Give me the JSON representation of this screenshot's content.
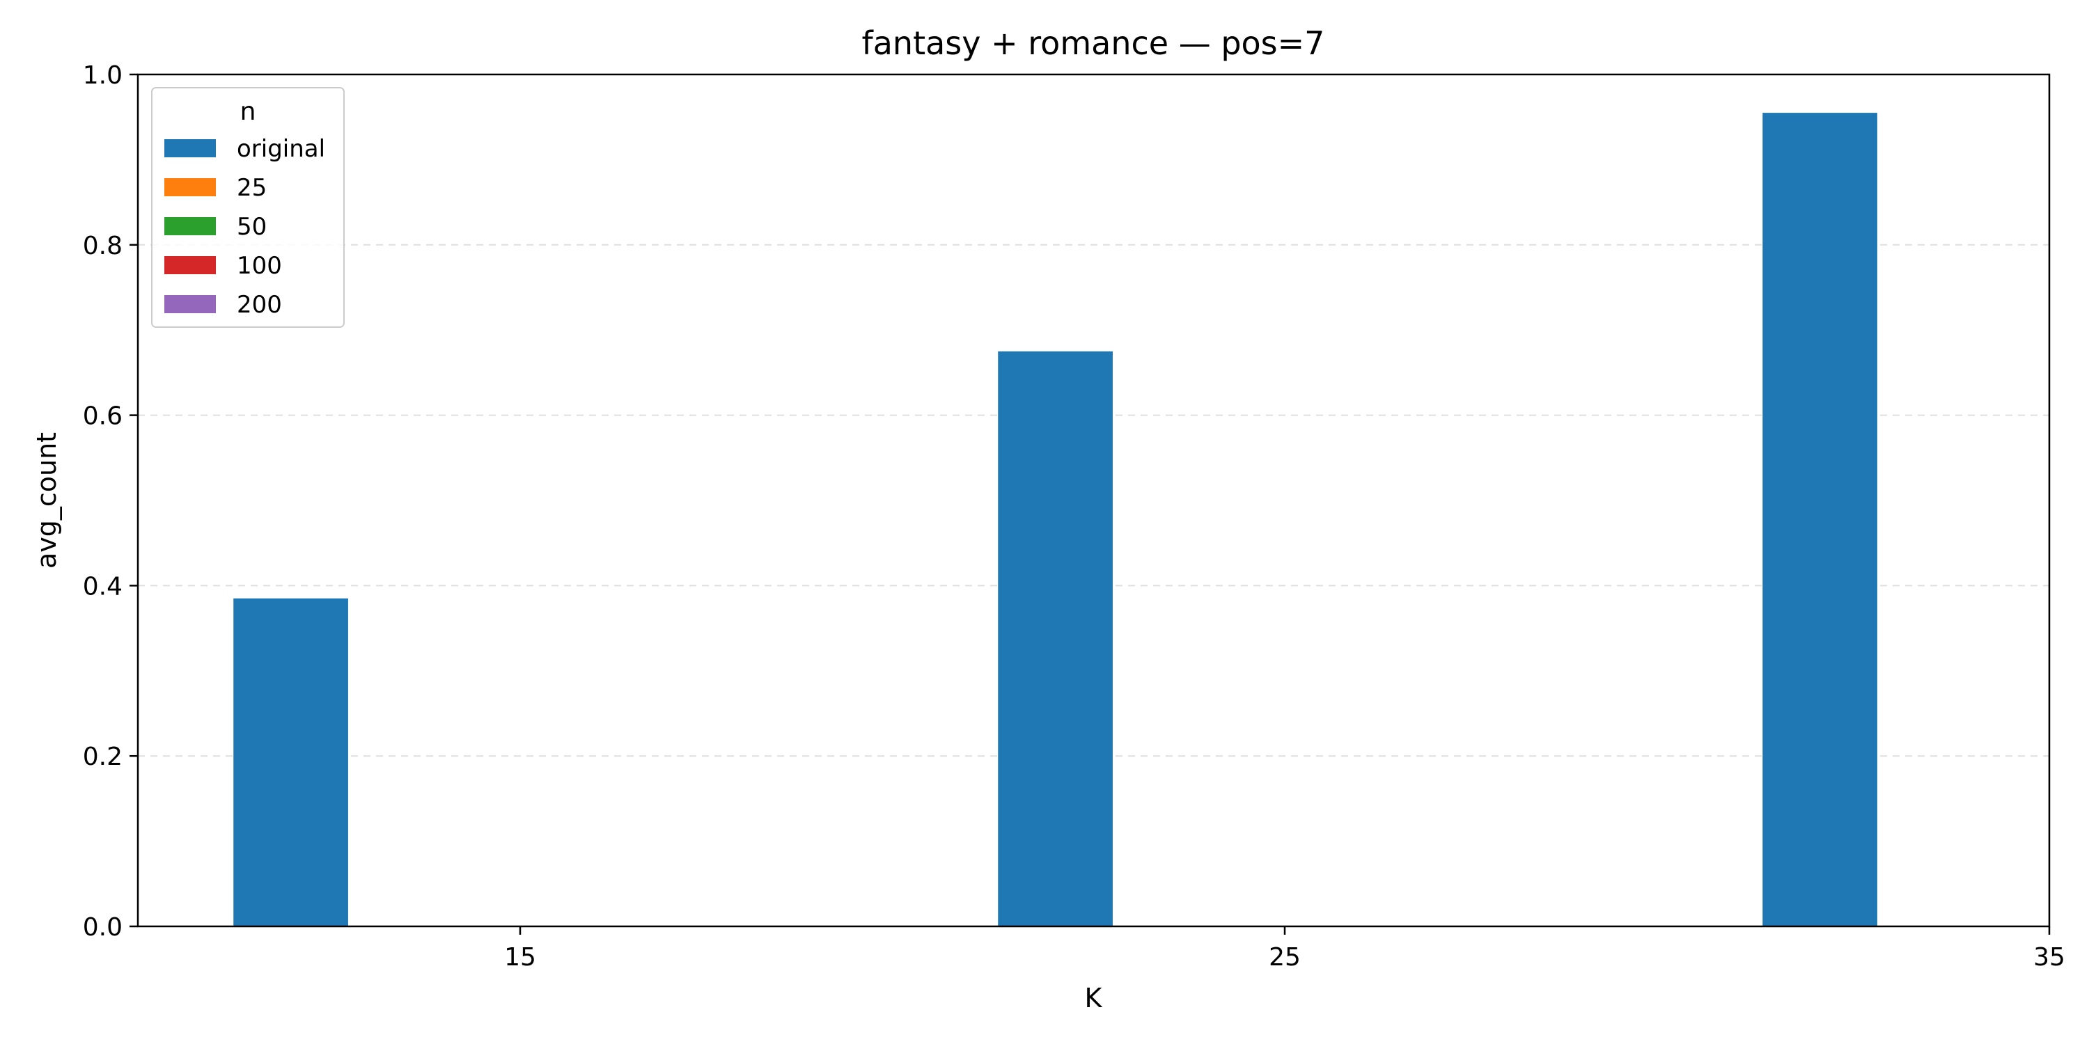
{
  "chart_data": {
    "type": "bar",
    "title": "fantasy + romance — pos=7",
    "xlabel": "K",
    "ylabel": "avg_count",
    "categories": [
      "15",
      "25",
      "35"
    ],
    "x_ticks": [
      "15",
      "25",
      "35"
    ],
    "y_ticks": [
      "0.0",
      "0.2",
      "0.4",
      "0.6",
      "0.8",
      "1.0"
    ],
    "ylim": [
      0,
      1.0
    ],
    "grid": "y dashed",
    "legend": {
      "title": "n",
      "placement": "top-left",
      "entries": [
        {
          "label": "original",
          "color": "#1f77b4"
        },
        {
          "label": "25",
          "color": "#ff7f0e"
        },
        {
          "label": "50",
          "color": "#2ca02c"
        },
        {
          "label": "100",
          "color": "#d62728"
        },
        {
          "label": "200",
          "color": "#9467bd"
        }
      ]
    },
    "series": [
      {
        "name": "original",
        "color": "#1f77b4",
        "values": [
          0.385,
          0.675,
          0.955
        ]
      },
      {
        "name": "25",
        "color": "#ff7f0e",
        "values": [
          0,
          0,
          0
        ]
      },
      {
        "name": "50",
        "color": "#2ca02c",
        "values": [
          0,
          0,
          0
        ]
      },
      {
        "name": "100",
        "color": "#d62728",
        "values": [
          0,
          0,
          0
        ]
      },
      {
        "name": "200",
        "color": "#9467bd",
        "values": [
          0,
          0,
          0
        ]
      }
    ]
  }
}
